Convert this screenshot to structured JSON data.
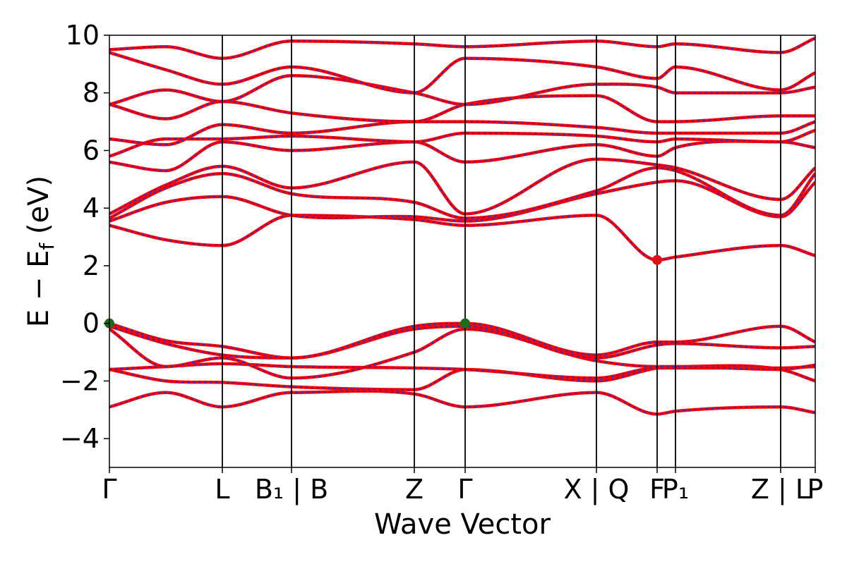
{
  "chart_data": {
    "type": "line",
    "title": "",
    "xlabel": "Wave Vector",
    "ylabel": "E − E_f (eV)",
    "ylabel_parts": {
      "main": "E − E",
      "sub": "f",
      "unit": " (eV)"
    },
    "ylim": [
      -5,
      10
    ],
    "yticks": [
      -4,
      -2,
      0,
      2,
      4,
      6,
      8,
      10
    ],
    "grid": false,
    "x_range": [
      0,
      1
    ],
    "kpoints": [
      {
        "x": 0.0,
        "label": "Γ"
      },
      {
        "x": 0.16,
        "label": "L"
      },
      {
        "x": 0.258,
        "label": "B₁ | B"
      },
      {
        "x": 0.432,
        "label": "Z"
      },
      {
        "x": 0.504,
        "label": "Γ"
      },
      {
        "x": 0.69,
        "label": "X | Q"
      },
      {
        "x": 0.776,
        "label": "F"
      },
      {
        "x": 0.802,
        "label": "P₁"
      },
      {
        "x": 0.951,
        "label": "Z | L"
      },
      {
        "x": 1.0,
        "label": "P"
      }
    ],
    "colors": {
      "band_outer": "#ff0000",
      "band_inner": "#1f2fd6",
      "vbm_marker": "#1a6e1a",
      "cbm_marker": "#e0101a"
    },
    "markers": [
      {
        "type": "VBM",
        "x": 0.0,
        "y": 0.0
      },
      {
        "type": "VBM",
        "x": 0.504,
        "y": 0.0
      },
      {
        "type": "CBM",
        "x": 0.776,
        "y": 2.2
      }
    ],
    "bands": [
      {
        "name": "",
        "x": [
          0,
          0.08,
          0.16,
          0.258,
          0.432,
          0.504,
          0.69,
          0.776,
          0.802,
          0.951,
          1.0
        ],
        "y": [
          -2.9,
          -2.4,
          -2.9,
          -2.4,
          -2.45,
          -2.9,
          -2.4,
          -3.15,
          -3.05,
          -2.9,
          -3.1
        ]
      },
      {
        "name": "",
        "x": [
          0,
          0.08,
          0.16,
          0.258,
          0.432,
          0.504,
          0.69,
          0.776,
          0.802,
          0.951,
          1.0
        ],
        "y": [
          -1.6,
          -2.0,
          -2.05,
          -2.2,
          -2.3,
          -1.6,
          -2.0,
          -1.55,
          -1.5,
          -1.6,
          -2.0
        ]
      },
      {
        "name": "",
        "x": [
          0,
          0.08,
          0.16,
          0.258,
          0.432,
          0.504,
          0.69,
          0.776,
          0.802,
          0.951,
          1.0
        ],
        "y": [
          -1.6,
          -1.5,
          -1.4,
          -1.5,
          -1.55,
          -1.6,
          -1.9,
          -1.55,
          -1.55,
          -1.55,
          -1.5
        ]
      },
      {
        "name": "",
        "x": [
          0,
          0.08,
          0.16,
          0.258,
          0.432,
          0.504,
          0.69,
          0.776,
          0.802,
          0.951,
          1.0
        ],
        "y": [
          -0.2,
          -1.5,
          -1.2,
          -1.9,
          -1.0,
          -0.2,
          -1.3,
          -1.5,
          -1.5,
          -1.6,
          -1.45
        ]
      },
      {
        "name": "",
        "x": [
          0,
          0.08,
          0.16,
          0.258,
          0.432,
          0.504,
          0.69,
          0.776,
          0.802,
          0.951,
          1.0
        ],
        "y": [
          -0.1,
          -0.7,
          -1.1,
          -1.2,
          -0.2,
          -0.1,
          -1.2,
          -0.75,
          -0.7,
          -0.85,
          -0.8
        ]
      },
      {
        "name": "",
        "x": [
          0,
          0.08,
          0.16,
          0.258,
          0.432,
          0.504,
          0.69,
          0.776,
          0.802,
          0.951,
          1.0
        ],
        "y": [
          0.0,
          -0.6,
          -0.8,
          -1.2,
          -0.1,
          0.0,
          -1.1,
          -0.65,
          -0.65,
          -0.1,
          -0.65
        ]
      },
      {
        "name": "",
        "x": [
          0,
          0.08,
          0.16,
          0.258,
          0.432,
          0.504,
          0.69,
          0.776,
          0.802,
          0.951,
          1.0
        ],
        "y": [
          3.4,
          2.9,
          2.7,
          3.75,
          3.6,
          3.4,
          3.75,
          2.2,
          2.3,
          2.7,
          2.35
        ]
      },
      {
        "name": "",
        "x": [
          0,
          0.08,
          0.16,
          0.258,
          0.432,
          0.504,
          0.69,
          0.776,
          0.802,
          0.951,
          1.0
        ],
        "y": [
          3.55,
          4.2,
          4.4,
          3.75,
          3.7,
          3.55,
          4.5,
          4.9,
          4.95,
          3.7,
          4.9
        ]
      },
      {
        "name": "",
        "x": [
          0,
          0.08,
          0.16,
          0.258,
          0.432,
          0.504,
          0.69,
          0.776,
          0.802,
          0.951,
          1.0
        ],
        "y": [
          3.65,
          4.7,
          5.2,
          4.5,
          4.2,
          3.65,
          4.6,
          5.4,
          5.3,
          3.75,
          5.2
        ]
      },
      {
        "name": "",
        "x": [
          0,
          0.08,
          0.16,
          0.258,
          0.432,
          0.504,
          0.69,
          0.776,
          0.802,
          0.951,
          1.0
        ],
        "y": [
          3.8,
          4.8,
          5.45,
          4.7,
          5.6,
          3.8,
          5.7,
          5.5,
          5.4,
          4.3,
          5.4
        ]
      },
      {
        "name": "",
        "x": [
          0,
          0.08,
          0.16,
          0.258,
          0.432,
          0.504,
          0.69,
          0.776,
          0.802,
          0.951,
          1.0
        ],
        "y": [
          5.6,
          5.3,
          6.3,
          6.0,
          6.3,
          5.6,
          6.2,
          5.8,
          6.1,
          6.3,
          6.1
        ]
      },
      {
        "name": "",
        "x": [
          0,
          0.08,
          0.16,
          0.258,
          0.432,
          0.504,
          0.69,
          0.776,
          0.802,
          0.951,
          1.0
        ],
        "y": [
          5.8,
          6.4,
          6.4,
          6.5,
          6.3,
          6.6,
          6.5,
          6.3,
          6.4,
          6.3,
          6.7
        ]
      },
      {
        "name": "",
        "x": [
          0,
          0.08,
          0.16,
          0.258,
          0.432,
          0.504,
          0.69,
          0.776,
          0.802,
          0.951,
          1.0
        ],
        "y": [
          6.4,
          6.2,
          6.9,
          6.6,
          7.0,
          7.0,
          6.8,
          6.6,
          6.6,
          6.6,
          7.0
        ]
      },
      {
        "name": "",
        "x": [
          0,
          0.08,
          0.16,
          0.258,
          0.432,
          0.504,
          0.69,
          0.776,
          0.802,
          0.951,
          1.0
        ],
        "y": [
          7.6,
          7.1,
          7.7,
          7.3,
          7.0,
          7.6,
          7.9,
          7.0,
          7.0,
          7.2,
          7.2
        ]
      },
      {
        "name": "",
        "x": [
          0,
          0.08,
          0.16,
          0.258,
          0.432,
          0.504,
          0.69,
          0.776,
          0.802,
          0.951,
          1.0
        ],
        "y": [
          7.6,
          8.1,
          7.7,
          8.6,
          8.0,
          7.6,
          8.3,
          8.2,
          8.0,
          8.0,
          8.2
        ]
      },
      {
        "name": "",
        "x": [
          0,
          0.08,
          0.16,
          0.258,
          0.432,
          0.504,
          0.69,
          0.776,
          0.802,
          0.951,
          1.0
        ],
        "y": [
          9.4,
          8.8,
          8.3,
          8.9,
          8.0,
          9.2,
          8.9,
          8.5,
          8.9,
          8.1,
          8.7
        ]
      },
      {
        "name": "",
        "x": [
          0,
          0.08,
          0.16,
          0.258,
          0.432,
          0.504,
          0.69,
          0.776,
          0.802,
          0.951,
          1.0
        ],
        "y": [
          9.5,
          9.6,
          9.2,
          9.8,
          9.7,
          9.6,
          9.8,
          9.6,
          9.7,
          9.4,
          9.9
        ]
      }
    ]
  }
}
